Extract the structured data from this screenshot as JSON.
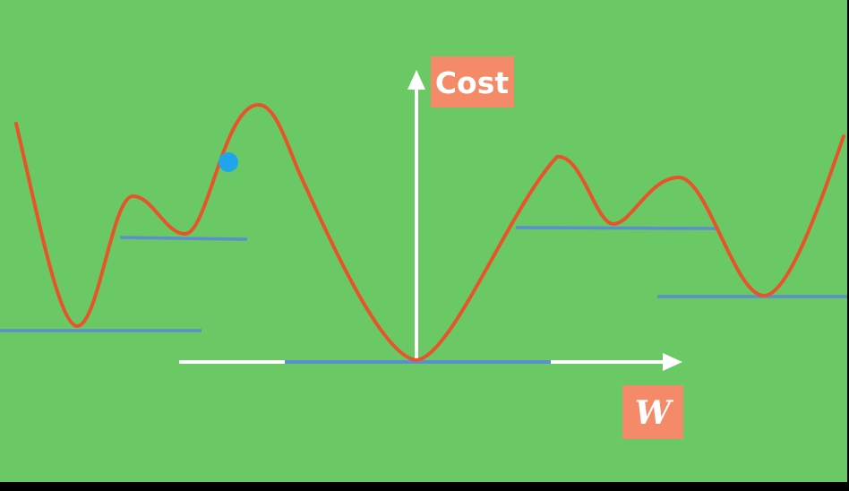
{
  "diagram": {
    "y_axis_label": "Cost",
    "x_axis_label": "W"
  },
  "colors": {
    "background": "#6ac964",
    "curve": "#e8542a",
    "minimum_lines": "#5b8fd0",
    "axes": "#ffffff",
    "label_box": "#f48a68",
    "point": "#1fa6ea",
    "frame": "#000000"
  },
  "icons": [
    "x-axis-arrow-icon",
    "y-axis-arrow-icon"
  ]
}
